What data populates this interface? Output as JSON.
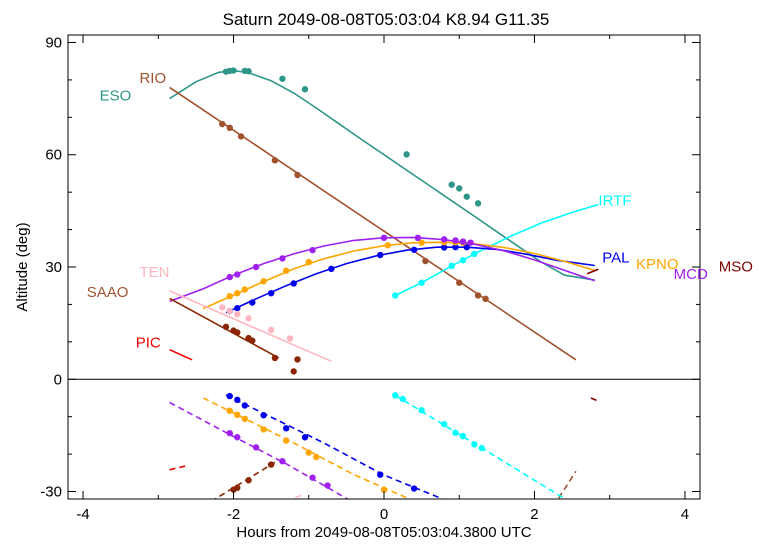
{
  "chart_data": {
    "type": "line",
    "title": "Saturn 2049-08-08T05:03:04  K8.94  G11.35",
    "xlabel": "Hours from 2049-08-08T05:03:04.3800 UTC",
    "ylabel": "Altitude (deg)",
    "xlim": [
      -4.2,
      4.2
    ],
    "ylim": [
      -32,
      92
    ],
    "x_ticks": [
      -4,
      -2,
      0,
      2,
      4
    ],
    "y_ticks": [
      -30,
      0,
      30,
      60,
      90
    ],
    "horizon_line": 0,
    "grid": false,
    "series": [
      {
        "name": "ESO",
        "color": "#2e9688",
        "x": [
          -2.85,
          -2.5,
          -2.2,
          -2.0,
          -1.8,
          -1.5,
          -1.2,
          -0.9,
          -0.6,
          -0.3,
          0.0,
          0.3,
          0.6,
          0.9,
          1.2,
          1.5,
          1.8,
          2.1,
          2.4,
          2.8
        ],
        "y": [
          75,
          79.5,
          82,
          82.5,
          81.9,
          79.8,
          76.5,
          72.5,
          68.3,
          64.1,
          60.0,
          55.9,
          51.8,
          47.7,
          43.6,
          39.4,
          35.3,
          31.2,
          27.8,
          26.5
        ],
        "points": [
          [
            -2.1,
            82.2
          ],
          [
            -2.05,
            82.4
          ],
          [
            -2.0,
            82.5
          ],
          [
            -1.85,
            82.4
          ],
          [
            -1.8,
            82.3
          ],
          [
            -1.35,
            80.3
          ],
          [
            -1.05,
            77.5
          ],
          [
            0.3,
            60.1
          ],
          [
            0.9,
            52
          ],
          [
            1.0,
            51
          ],
          [
            1.1,
            48.8
          ],
          [
            1.25,
            47
          ]
        ]
      },
      {
        "name": "RIO",
        "color": "#a0522d",
        "x": [
          -2.85,
          2.55
        ],
        "y": [
          78.0,
          5.2
        ],
        "points": [
          [
            -2.15,
            68.2
          ],
          [
            -2.05,
            67.2
          ],
          [
            -1.9,
            64.9
          ],
          [
            -1.45,
            58.5
          ],
          [
            -1.15,
            54.6
          ],
          [
            0.55,
            31.6
          ],
          [
            1.0,
            25.8
          ],
          [
            1.25,
            22.4
          ],
          [
            1.35,
            21.5
          ]
        ]
      },
      {
        "name": "IRTF",
        "color": "#00ffff",
        "x": [
          0.15,
          0.5,
          0.9,
          1.3,
          1.7,
          2.1,
          2.5,
          2.85
        ],
        "y": [
          22.4,
          25.8,
          30.3,
          34.5,
          38.4,
          41.8,
          44.6,
          46.7
        ],
        "points": [
          [
            0.15,
            22.4
          ],
          [
            0.5,
            25.8
          ],
          [
            0.9,
            30.3
          ],
          [
            1.05,
            31.8
          ],
          [
            1.2,
            33.5
          ]
        ]
      },
      {
        "name": "PAL",
        "color": "#0000ee",
        "x": [
          -2.1,
          -1.7,
          -1.3,
          -0.9,
          -0.5,
          -0.1,
          0.3,
          0.7,
          1.1,
          1.5,
          1.9,
          2.3,
          2.8
        ],
        "y": [
          17.8,
          21.5,
          25.0,
          28.2,
          30.9,
          33.0,
          34.5,
          35.3,
          35.3,
          34.7,
          33.4,
          31.8,
          30.4
        ],
        "points": [
          [
            -2.05,
            18.2
          ],
          [
            -1.95,
            19
          ],
          [
            -1.75,
            20.5
          ],
          [
            -1.5,
            23
          ],
          [
            -1.2,
            25.6
          ],
          [
            -0.7,
            29.5
          ],
          [
            -0.05,
            33.2
          ],
          [
            0.4,
            34.6
          ],
          [
            0.8,
            35.2
          ],
          [
            0.95,
            35.3
          ],
          [
            1.1,
            35.3
          ]
        ]
      },
      {
        "name": "KPNO",
        "color": "#ffa500",
        "x": [
          -2.4,
          -2.0,
          -1.6,
          -1.2,
          -0.8,
          -0.4,
          0.0,
          0.4,
          0.8,
          1.2,
          1.6,
          2.0,
          2.4,
          2.8
        ],
        "y": [
          18.9,
          22.5,
          26.1,
          29.5,
          32.2,
          34.3,
          35.7,
          36.5,
          36.6,
          36.2,
          35.2,
          33.6,
          31.5,
          29.1
        ],
        "points": [
          [
            -2.05,
            22.2
          ],
          [
            -1.95,
            23
          ],
          [
            -1.85,
            24
          ],
          [
            -1.6,
            26.2
          ],
          [
            -1.3,
            29
          ],
          [
            -1.0,
            31.3
          ],
          [
            0.05,
            35.8
          ],
          [
            0.5,
            36.5
          ],
          [
            0.8,
            36.6
          ],
          [
            0.95,
            36.6
          ],
          [
            1.05,
            36.5
          ]
        ]
      },
      {
        "name": "MCD",
        "color": "#a020f0",
        "x": [
          -2.85,
          -2.4,
          -2.0,
          -1.6,
          -1.2,
          -0.8,
          -0.4,
          0.0,
          0.4,
          0.8,
          1.2,
          1.6,
          2.0,
          2.4,
          2.8
        ],
        "y": [
          20.8,
          24.2,
          27.8,
          30.9,
          33.5,
          35.6,
          37.1,
          37.8,
          37.9,
          37.3,
          36.1,
          34.3,
          31.9,
          29.1,
          26.3
        ],
        "points": [
          [
            -2.05,
            27.3
          ],
          [
            -1.95,
            28
          ],
          [
            -1.7,
            30
          ],
          [
            -1.35,
            32.3
          ],
          [
            -0.95,
            34.5
          ],
          [
            0.0,
            37.8
          ],
          [
            0.45,
            37.8
          ],
          [
            0.8,
            37.4
          ],
          [
            0.95,
            37.1
          ],
          [
            1.05,
            36.8
          ],
          [
            1.15,
            36.5
          ]
        ]
      },
      {
        "name": "MSO",
        "color": "#800000",
        "x": [
          2.7,
          2.85
        ],
        "y": [
          28.2,
          29.4
        ],
        "points": []
      },
      {
        "name": "SAAO",
        "color": "#8b2500",
        "x": [
          -2.85,
          -1.4
        ],
        "y": [
          21.6,
          5.7
        ],
        "points": [
          [
            -2.1,
            14
          ],
          [
            -2.0,
            13
          ],
          [
            -1.95,
            12.5
          ],
          [
            -1.8,
            11
          ],
          [
            -1.75,
            10.3
          ],
          [
            -1.45,
            5.7
          ],
          [
            -1.15,
            5.3
          ],
          [
            -1.2,
            2.1
          ]
        ]
      },
      {
        "name": "TEN",
        "color": "#ffb6c1",
        "x": [
          -2.85,
          -0.7
        ],
        "y": [
          23.6,
          4.8
        ],
        "points": [
          [
            -2.15,
            19.2
          ],
          [
            -2.05,
            18.2
          ],
          [
            -1.95,
            17.4
          ],
          [
            -1.8,
            16.3
          ],
          [
            -1.5,
            13.2
          ],
          [
            -1.25,
            10.9
          ]
        ]
      },
      {
        "name": "PIC",
        "color": "#ee0000",
        "x": [
          -2.85,
          -2.55
        ],
        "y": [
          7.9,
          5.2
        ],
        "points": []
      }
    ],
    "below_horizon": [
      {
        "name": "ESO",
        "color": "#2e9688",
        "x": [],
        "y": [],
        "points": []
      },
      {
        "name": "RIO",
        "color": "#a0522d",
        "x": [
          2.25,
          2.55
        ],
        "y": [
          -34,
          -24.6
        ],
        "points": []
      },
      {
        "name": "IRTF",
        "color": "#00ffff",
        "x": [
          0.15,
          2.45
        ],
        "y": [
          -4.3,
          -32.5
        ],
        "points": [
          [
            0.15,
            -4.3
          ],
          [
            0.25,
            -5.3
          ],
          [
            0.5,
            -8.3
          ],
          [
            0.8,
            -12
          ],
          [
            0.95,
            -14.3
          ],
          [
            1.05,
            -15.2
          ],
          [
            1.2,
            -17.4
          ],
          [
            1.3,
            -18.4
          ]
        ]
      },
      {
        "name": "PAL",
        "color": "#0000ee",
        "x": [
          -2.1,
          -0.8,
          0.0,
          0.9
        ],
        "y": [
          -4.2,
          -17.0,
          -25.6,
          -33.0
        ],
        "points": [
          [
            -2.05,
            -4.5
          ],
          [
            -1.95,
            -5.5
          ],
          [
            -1.85,
            -7
          ],
          [
            -1.6,
            -9.6
          ],
          [
            -1.3,
            -13.1
          ],
          [
            -1.05,
            -15.5
          ],
          [
            -0.05,
            -25.5
          ],
          [
            0.4,
            -29.2
          ]
        ]
      },
      {
        "name": "KPNO",
        "color": "#ffa500",
        "x": [
          -2.4,
          -1.2,
          -0.4,
          0.45
        ],
        "y": [
          -5.0,
          -17.0,
          -25.5,
          -33.0
        ],
        "points": [
          [
            -2.05,
            -8.4
          ],
          [
            -1.95,
            -9.5
          ],
          [
            -1.85,
            -10.6
          ],
          [
            -1.6,
            -13.4
          ],
          [
            -1.3,
            -16.4
          ],
          [
            -1.0,
            -19.6
          ],
          [
            -0.9,
            -20.8
          ],
          [
            0.0,
            -29.5
          ]
        ]
      },
      {
        "name": "MCD",
        "color": "#a020f0",
        "x": [
          -2.85,
          -2.0,
          -1.3,
          -0.4
        ],
        "y": [
          -6.2,
          -15.3,
          -22.6,
          -33.0
        ],
        "points": [
          [
            -2.05,
            -14.4
          ],
          [
            -1.95,
            -15.5
          ],
          [
            -1.7,
            -18.2
          ],
          [
            -1.35,
            -21.9
          ],
          [
            -0.95,
            -26.3
          ],
          [
            -0.75,
            -28.4
          ]
        ]
      },
      {
        "name": "MSO",
        "color": "#800000",
        "x": [
          2.75,
          2.85
        ],
        "y": [
          -5.0,
          -5.9
        ],
        "points": []
      },
      {
        "name": "SAAO",
        "color": "#8b2500",
        "x": [
          -2.3,
          -1.45
        ],
        "y": [
          -32.7,
          -22.2
        ],
        "points": [
          [
            -2.0,
            -29.5
          ],
          [
            -1.95,
            -29
          ],
          [
            -1.8,
            -27
          ],
          [
            -1.5,
            -22.8
          ]
        ]
      },
      {
        "name": "TEN",
        "color": "#ffb6c1",
        "x": [
          -1.3,
          -1.1
        ],
        "y": [
          -32.6,
          -31.0
        ],
        "points": []
      },
      {
        "name": "PIC",
        "color": "#ee0000",
        "x": [
          -2.85,
          -2.6
        ],
        "y": [
          -24.2,
          -23.0
        ],
        "points": []
      }
    ],
    "labels": [
      {
        "text": "ESO",
        "color": "#2e9688",
        "x": -3.78,
        "y": 74.5
      },
      {
        "text": "RIO",
        "color": "#a0522d",
        "x": -3.25,
        "y": 79.2
      },
      {
        "text": "IRTF",
        "color": "#00ffff",
        "x": 2.85,
        "y": 46.5
      },
      {
        "text": "PAL",
        "color": "#0000ee",
        "x": 2.9,
        "y": 31.2
      },
      {
        "text": "KPNO",
        "color": "#ffa500",
        "x": 3.35,
        "y": 29.5
      },
      {
        "text": "MCD",
        "color": "#a020f0",
        "x": 3.85,
        "y": 26.8
      },
      {
        "text": "MSO",
        "color": "#800000",
        "x": 4.45,
        "y": 28.8
      },
      {
        "text": "SAAO",
        "color": "#a0522d",
        "x": -3.95,
        "y": 22.0
      },
      {
        "text": "TEN",
        "color": "#ffb6c1",
        "x": -3.25,
        "y": 27.3
      },
      {
        "text": "PIC",
        "color": "#ee0000",
        "x": -3.3,
        "y": 8.5
      }
    ]
  }
}
